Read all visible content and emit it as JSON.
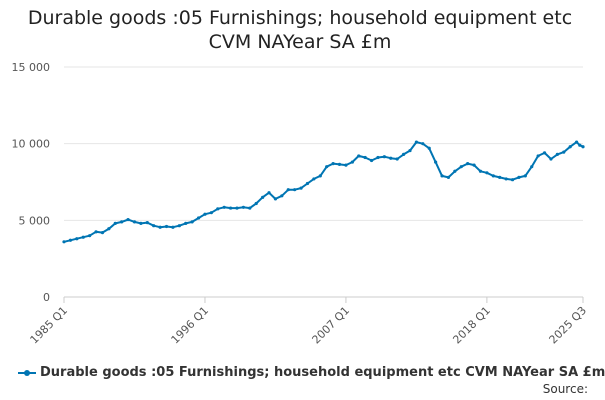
{
  "chart_data": {
    "type": "line",
    "title_lines": [
      "Durable goods :05 Furnishings; household equipment etc",
      "CVM NAYear SA £m"
    ],
    "xlabel": "",
    "ylabel": "",
    "ylim": [
      0,
      15000
    ],
    "yticks": [
      0,
      5000,
      10000,
      15000
    ],
    "ytick_labels": [
      "0",
      "5 000",
      "10 000",
      "15 000"
    ],
    "xticks": [
      {
        "label": "1985 Q1",
        "x": 1985.0
      },
      {
        "label": "1996 Q1",
        "x": 1996.0
      },
      {
        "label": "2007 Q1",
        "x": 2007.0
      },
      {
        "label": "2018 Q1",
        "x": 2018.0
      },
      {
        "label": "2025 Q3",
        "x": 2025.5
      }
    ],
    "xlim": [
      1985.0,
      2025.5
    ],
    "grid": true,
    "legend_position": "bottom",
    "series": [
      {
        "name": "Durable goods :05 Furnishings; household equipment etc CVM NAYear SA £m",
        "color": "#0075b3",
        "points": [
          [
            1985.0,
            3600
          ],
          [
            1985.5,
            3700
          ],
          [
            1986.0,
            3800
          ],
          [
            1986.5,
            3900
          ],
          [
            1987.0,
            4000
          ],
          [
            1987.5,
            4250
          ],
          [
            1988.0,
            4200
          ],
          [
            1988.5,
            4450
          ],
          [
            1989.0,
            4800
          ],
          [
            1989.5,
            4900
          ],
          [
            1990.0,
            5050
          ],
          [
            1990.5,
            4900
          ],
          [
            1991.0,
            4800
          ],
          [
            1991.5,
            4850
          ],
          [
            1992.0,
            4650
          ],
          [
            1992.5,
            4550
          ],
          [
            1993.0,
            4600
          ],
          [
            1993.5,
            4550
          ],
          [
            1994.0,
            4650
          ],
          [
            1994.5,
            4800
          ],
          [
            1995.0,
            4900
          ],
          [
            1995.5,
            5150
          ],
          [
            1996.0,
            5400
          ],
          [
            1996.5,
            5500
          ],
          [
            1997.0,
            5750
          ],
          [
            1997.5,
            5850
          ],
          [
            1998.0,
            5800
          ],
          [
            1998.5,
            5800
          ],
          [
            1999.0,
            5850
          ],
          [
            1999.5,
            5800
          ],
          [
            2000.0,
            6100
          ],
          [
            2000.5,
            6500
          ],
          [
            2001.0,
            6800
          ],
          [
            2001.5,
            6400
          ],
          [
            2002.0,
            6600
          ],
          [
            2002.5,
            7000
          ],
          [
            2003.0,
            7000
          ],
          [
            2003.5,
            7100
          ],
          [
            2004.0,
            7400
          ],
          [
            2004.5,
            7700
          ],
          [
            2005.0,
            7900
          ],
          [
            2005.5,
            8500
          ],
          [
            2006.0,
            8700
          ],
          [
            2006.5,
            8650
          ],
          [
            2007.0,
            8600
          ],
          [
            2007.5,
            8800
          ],
          [
            2008.0,
            9200
          ],
          [
            2008.5,
            9100
          ],
          [
            2009.0,
            8900
          ],
          [
            2009.5,
            9100
          ],
          [
            2010.0,
            9150
          ],
          [
            2010.5,
            9050
          ],
          [
            2011.0,
            9000
          ],
          [
            2011.5,
            9300
          ],
          [
            2012.0,
            9550
          ],
          [
            2012.5,
            10100
          ],
          [
            2013.0,
            10000
          ],
          [
            2013.5,
            9700
          ],
          [
            2014.0,
            8800
          ],
          [
            2014.5,
            7900
          ],
          [
            2015.0,
            7800
          ],
          [
            2015.5,
            8200
          ],
          [
            2016.0,
            8500
          ],
          [
            2016.5,
            8700
          ],
          [
            2017.0,
            8600
          ],
          [
            2017.5,
            8200
          ],
          [
            2018.0,
            8100
          ],
          [
            2018.5,
            7900
          ],
          [
            2019.0,
            7800
          ],
          [
            2019.5,
            7700
          ],
          [
            2020.0,
            7650
          ],
          [
            2020.5,
            7800
          ],
          [
            2021.0,
            7900
          ],
          [
            2021.5,
            8500
          ],
          [
            2022.0,
            9200
          ],
          [
            2022.5,
            9400
          ],
          [
            2023.0,
            9000
          ],
          [
            2023.5,
            9300
          ],
          [
            2024.0,
            9450
          ],
          [
            2024.5,
            9800
          ],
          [
            2025.0,
            10100
          ],
          [
            2025.25,
            9900
          ],
          [
            2025.5,
            9800
          ]
        ]
      }
    ]
  },
  "legend": {
    "label": "Durable goods :05 Furnishings; household equipment etc CVM NAYear SA £m"
  },
  "source": {
    "label": "Source:"
  }
}
